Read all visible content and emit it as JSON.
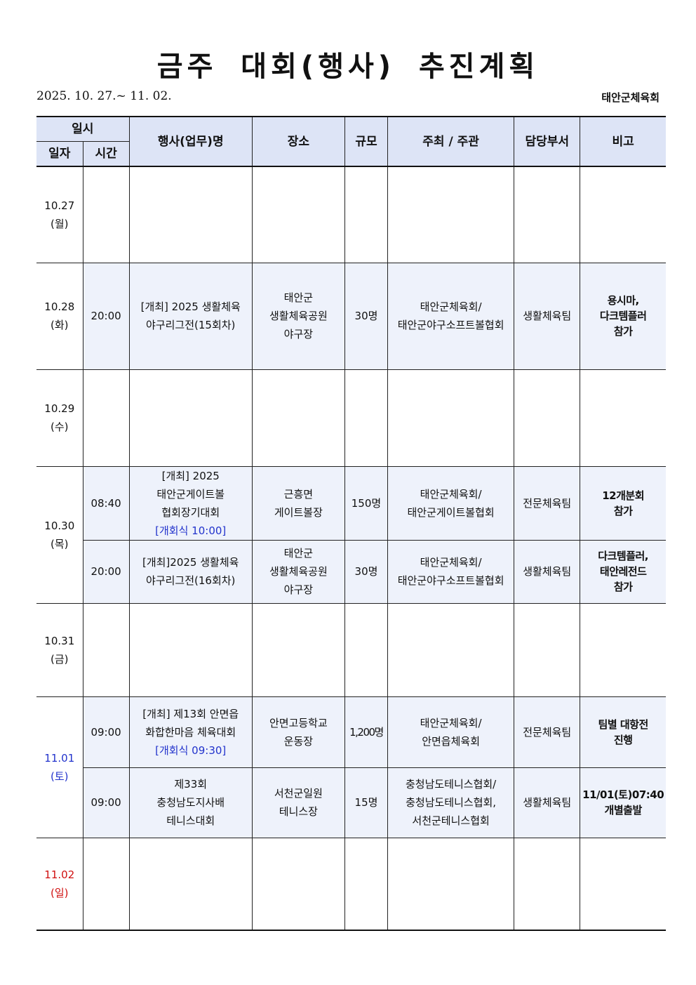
{
  "title": "금주 대회(행사) 추진계획",
  "period": "2025. 10. 27.~ 11. 02.",
  "org": "태안군체육회",
  "headers": {
    "datetime": "일시",
    "date": "일자",
    "time": "시간",
    "event": "행사(업무)명",
    "place": "장소",
    "scale": "규모",
    "host": "주최 / 주관",
    "dept": "담당부서",
    "note": "비고"
  },
  "days": [
    {
      "date": "10.27\n(월)"
    },
    {
      "date": "10.28\n(화)",
      "events": [
        {
          "time": "20:00",
          "event": "[개최] 2025 생활체육\n야구리그전(15회차)",
          "place": "태안군\n생활체육공원\n야구장",
          "scale": "30명",
          "host": "태안군체육회/\n태안군야구소프트볼협회",
          "dept": "생활체육팀",
          "note": "용시마,\n다크템플러\n참가"
        }
      ]
    },
    {
      "date": "10.29\n(수)"
    },
    {
      "date": "10.30\n(목)",
      "events": [
        {
          "time": "08:40",
          "event": "[개최] 2025\n태안군게이트볼\n협회장기대회",
          "event_sub": "[개회식 10:00]",
          "place": "근흥면\n게이트볼장",
          "scale": "150명",
          "host": "태안군체육회/\n태안군게이트볼협회",
          "dept": "전문체육팀",
          "note": "12개분회\n참가"
        },
        {
          "time": "20:00",
          "event": "[개최]2025 생활체육\n야구리그전(16회차)",
          "place": "태안군\n생활체육공원\n야구장",
          "scale": "30명",
          "host": "태안군체육회/\n태안군야구소프트볼협회",
          "dept": "생활체육팀",
          "note": "다크템플러,\n태안레전드\n참가"
        }
      ]
    },
    {
      "date": "10.31\n(금)"
    },
    {
      "date": "11.01\n(토)",
      "color": "#2233cc",
      "events": [
        {
          "time": "09:00",
          "event": "[개최] 제13회 안면읍\n화합한마음 체육대회",
          "event_sub": "[개회식 09:30]",
          "place": "안면고등학교\n운동장",
          "scale": "1,200명",
          "host": "태안군체육회/\n안면읍체육회",
          "dept": "전문체육팀",
          "note": "팀별 대항전\n진행"
        },
        {
          "time": "09:00",
          "event": "제33회\n충청남도지사배\n테니스대회",
          "place": "서천군일원\n테니스장",
          "scale": "15명",
          "host": "충청남도테니스협회/\n충청남도테니스협회,\n서천군테니스협회",
          "dept": "생활체육팀",
          "note": "11/01(토)07:40\n개별출발"
        }
      ]
    },
    {
      "date": "11.02\n(일)",
      "color": "#d01010"
    }
  ]
}
